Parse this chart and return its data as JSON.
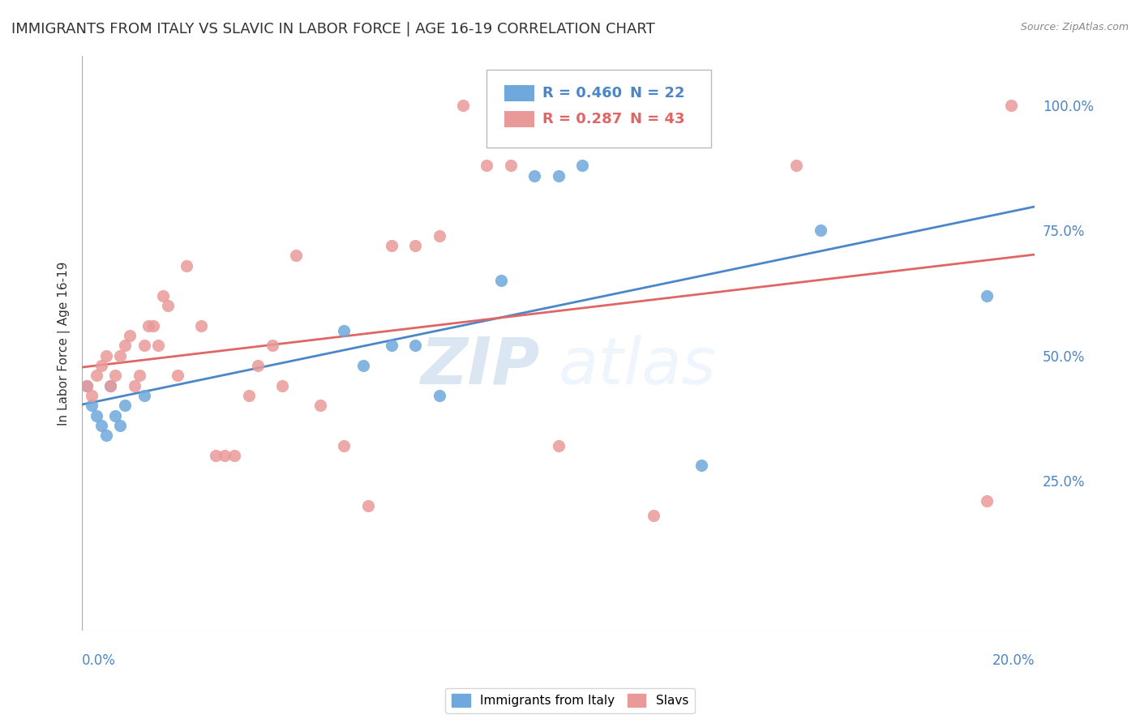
{
  "title": "IMMIGRANTS FROM ITALY VS SLAVIC IN LABOR FORCE | AGE 16-19 CORRELATION CHART",
  "source": "Source: ZipAtlas.com",
  "ylabel": "In Labor Force | Age 16-19",
  "right_yticks": [
    "100.0%",
    "75.0%",
    "50.0%",
    "25.0%"
  ],
  "right_ytick_vals": [
    1.0,
    0.75,
    0.5,
    0.25
  ],
  "xlim": [
    0.0,
    0.2
  ],
  "ylim": [
    -0.05,
    1.1
  ],
  "legend_italy_r": "R = 0.460",
  "legend_italy_n": "N = 22",
  "legend_slavs_r": "R = 0.287",
  "legend_slavs_n": "N = 43",
  "italy_color": "#6fa8dc",
  "slavs_color": "#ea9999",
  "italy_line_color": "#4a86c8",
  "slavs_line_color": "#e06666",
  "watermark_zip": "ZIP",
  "watermark_atlas": "atlas",
  "italy_x": [
    0.001,
    0.002,
    0.003,
    0.004,
    0.005,
    0.006,
    0.007,
    0.008,
    0.009,
    0.013,
    0.055,
    0.059,
    0.065,
    0.07,
    0.075,
    0.088,
    0.095,
    0.1,
    0.105,
    0.13,
    0.155,
    0.19
  ],
  "italy_y": [
    0.44,
    0.4,
    0.38,
    0.36,
    0.34,
    0.44,
    0.38,
    0.36,
    0.4,
    0.42,
    0.55,
    0.48,
    0.52,
    0.52,
    0.42,
    0.65,
    0.86,
    0.86,
    0.88,
    0.28,
    0.75,
    0.62
  ],
  "slavs_x": [
    0.001,
    0.002,
    0.003,
    0.004,
    0.005,
    0.006,
    0.007,
    0.008,
    0.009,
    0.01,
    0.011,
    0.012,
    0.013,
    0.014,
    0.015,
    0.016,
    0.017,
    0.018,
    0.02,
    0.022,
    0.025,
    0.028,
    0.03,
    0.032,
    0.035,
    0.037,
    0.04,
    0.042,
    0.045,
    0.05,
    0.055,
    0.06,
    0.065,
    0.07,
    0.075,
    0.08,
    0.085,
    0.09,
    0.1,
    0.12,
    0.15,
    0.19,
    0.195
  ],
  "slavs_y": [
    0.44,
    0.42,
    0.46,
    0.48,
    0.5,
    0.44,
    0.46,
    0.5,
    0.52,
    0.54,
    0.44,
    0.46,
    0.52,
    0.56,
    0.56,
    0.52,
    0.62,
    0.6,
    0.46,
    0.68,
    0.56,
    0.3,
    0.3,
    0.3,
    0.42,
    0.48,
    0.52,
    0.44,
    0.7,
    0.4,
    0.32,
    0.2,
    0.72,
    0.72,
    0.74,
    1.0,
    0.88,
    0.88,
    0.32,
    0.18,
    0.88,
    0.21,
    1.0
  ],
  "background_color": "#ffffff",
  "grid_color": "#dddddd",
  "axis_color": "#4a86c8",
  "title_fontsize": 13,
  "axis_label_fontsize": 11
}
